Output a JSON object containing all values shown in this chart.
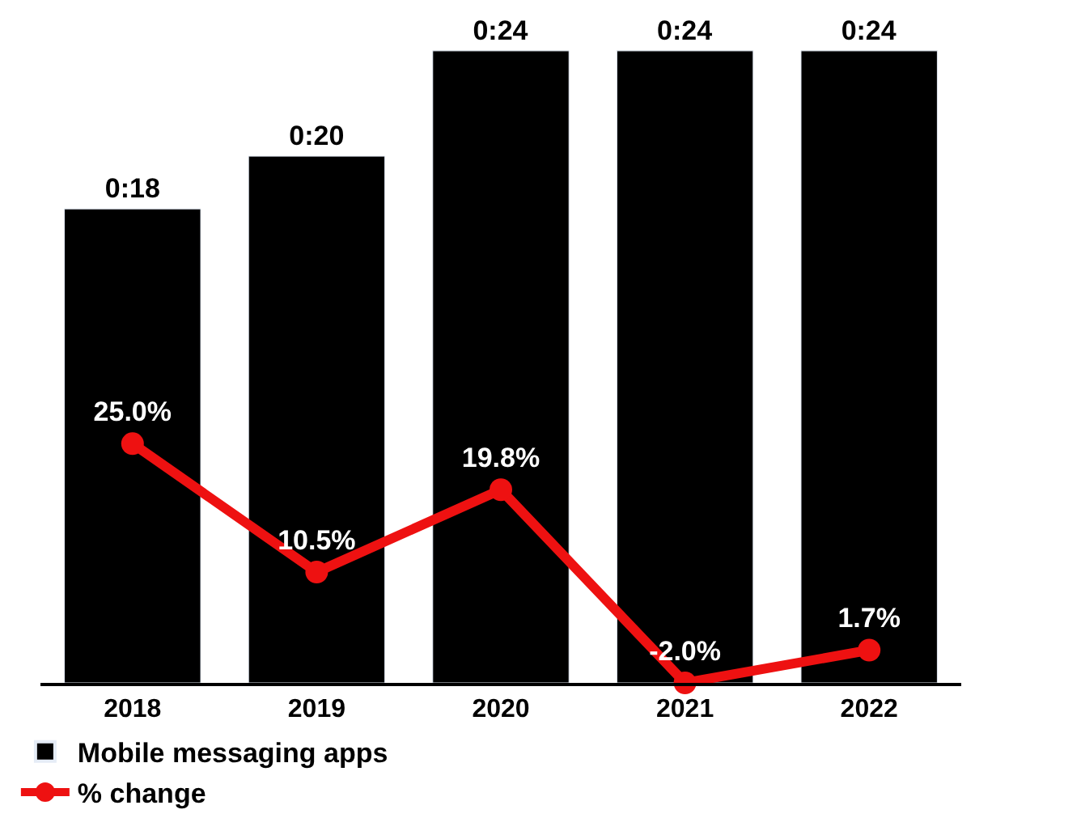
{
  "chart_data": {
    "type": "bar",
    "categories": [
      "2018",
      "2019",
      "2020",
      "2021",
      "2022"
    ],
    "series": [
      {
        "name": "Mobile messaging apps",
        "color": "#000000",
        "values": [
          18,
          20,
          24,
          24,
          24
        ],
        "value_labels": [
          "0:18",
          "0:20",
          "0:24",
          "0:24",
          "0:24"
        ]
      },
      {
        "name": "% change",
        "type": "line",
        "axis": "y2",
        "color": "#ee1111",
        "marker": "circle",
        "values": [
          25.0,
          10.5,
          19.8,
          -2.0,
          1.7
        ],
        "value_labels": [
          "25.0%",
          "10.5%",
          "19.8%",
          "-2.0%",
          "1.7%"
        ]
      }
    ],
    "tick_labels": "x",
    "legend": "bottom"
  }
}
